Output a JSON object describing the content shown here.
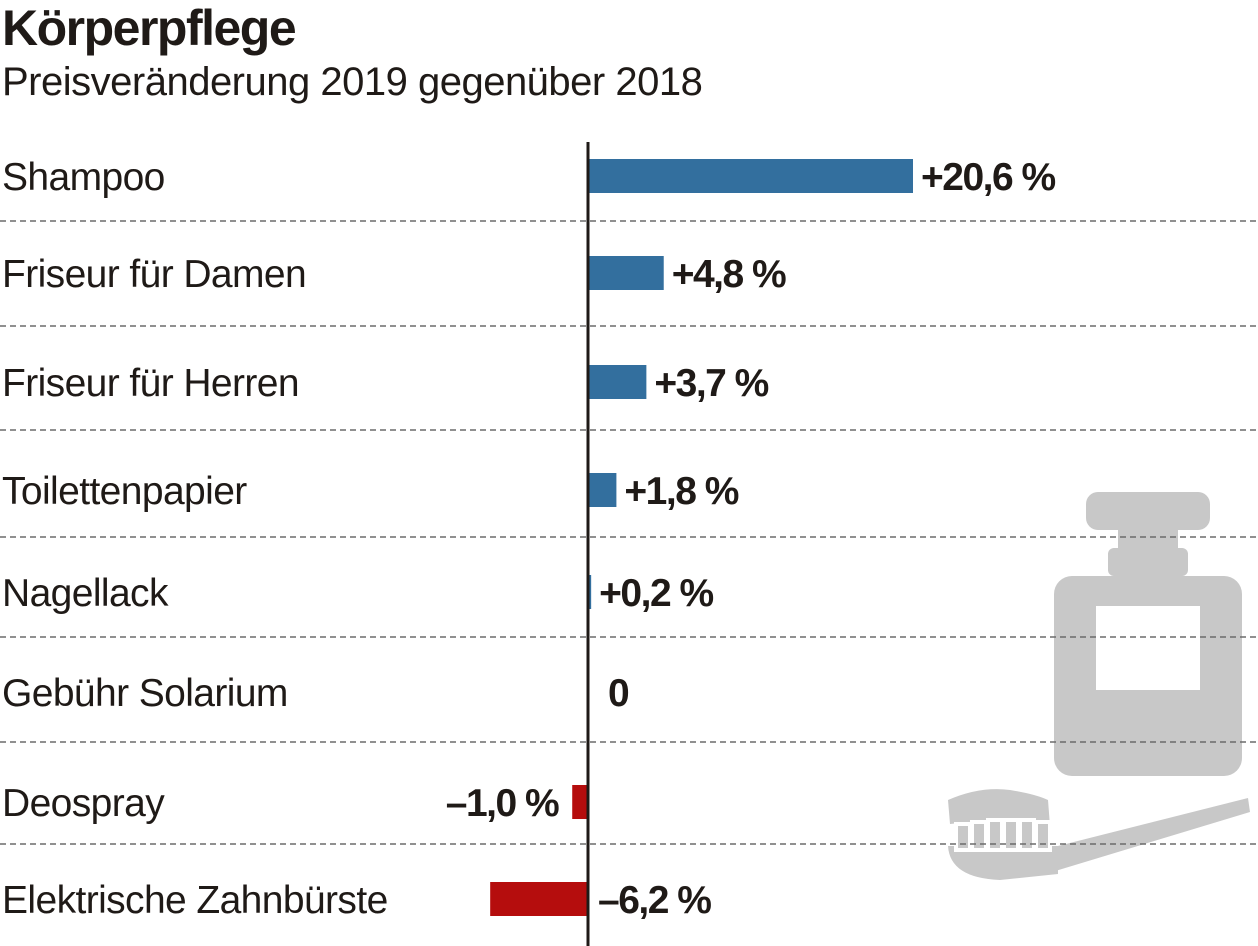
{
  "title": "Körperpflege",
  "subtitle": "Preisveränderung 2019 gegenüber 2018",
  "chart_data": {
    "type": "bar",
    "orientation": "horizontal",
    "title": "Körperpflege",
    "subtitle": "Preisveränderung 2019 gegenüber 2018",
    "categories": [
      "Shampoo",
      "Friseur für Damen",
      "Friseur für Herren",
      "Toilettenpapier",
      "Nagellack",
      "Gebühr Solarium",
      "Deospray",
      "Elektrische Zahnbürste"
    ],
    "values": [
      20.6,
      4.8,
      3.7,
      1.8,
      0.2,
      0,
      -1.0,
      -6.2
    ],
    "value_labels": [
      "+20,6 %",
      "+4,8 %",
      "+3,7 %",
      "+1,8 %",
      "+0,2 %",
      "0",
      "–1,0 %",
      "–6,2 %"
    ],
    "unit": "%",
    "xlim": [
      -6.2,
      20.6
    ],
    "colors": {
      "positive": "#336f9e",
      "negative": "#b50d0d",
      "axis": "#1f1a17",
      "separator": "#6b6b6b",
      "illustration": "#c8c8c8"
    },
    "grid": false,
    "separators": "dashed",
    "illustration_icons": [
      "perfume-bottle-icon",
      "toothbrush-icon"
    ]
  }
}
